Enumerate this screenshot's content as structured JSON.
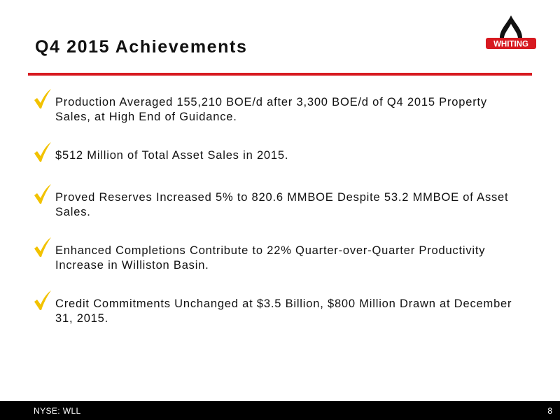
{
  "slide": {
    "title": "Q4 2015 Achievements"
  },
  "logo": {
    "text": "WHITING",
    "icon": "oil-drop-icon",
    "color": "#d71920"
  },
  "bullets": [
    {
      "icon": "check-icon",
      "text": "Production Averaged 155,210 BOE/d after 3,300 BOE/d of Q4 2015 Property Sales, at High End of Guidance."
    },
    {
      "icon": "check-icon",
      "text": "$512 Million of Total Asset Sales in 2015."
    },
    {
      "icon": "check-icon",
      "text": "Proved Reserves Increased 5% to 820.6 MMBOE Despite 53.2 MMBOE of Asset Sales."
    },
    {
      "icon": "check-icon",
      "text": "Enhanced Completions Contribute to 22% Quarter-over-Quarter Productivity Increase in Williston Basin."
    },
    {
      "icon": "check-icon",
      "text": "Credit Commitments Unchanged at $3.5 Billion, $800 Million Drawn at December 31, 2015."
    }
  ],
  "footer": {
    "ticker": "NYSE: WLL",
    "page_number": "8"
  },
  "colors": {
    "accent_red": "#d71920",
    "check_yellow": "#f2c200",
    "footer_bg": "#000000"
  }
}
